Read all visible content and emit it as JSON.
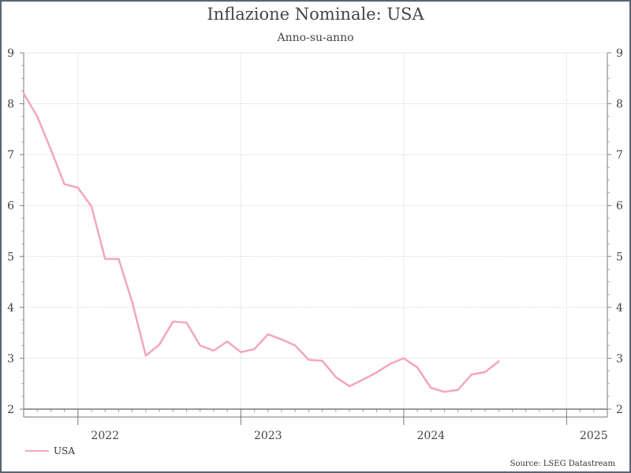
{
  "chart_data": {
    "type": "line",
    "title": "Inflazione Nominale: USA",
    "subtitle": "Anno-su-anno",
    "xlabel": "",
    "ylabel": "",
    "ylim": [
      2,
      9
    ],
    "yticks": [
      2,
      3,
      4,
      5,
      6,
      7,
      8,
      9
    ],
    "xlim": [
      "2022-01",
      "2025-08"
    ],
    "year_labels": [
      {
        "label": "2022",
        "month": "2022-07"
      },
      {
        "label": "2023",
        "month": "2023-07"
      },
      {
        "label": "2024",
        "month": "2024-07"
      },
      {
        "label": "2025",
        "month": "2025-07"
      }
    ],
    "year_boundaries": [
      "2022-05",
      "2023-05",
      "2024-05",
      "2025-05"
    ],
    "grid": true,
    "legend_position": "bottom-left",
    "series": [
      {
        "name": "USA",
        "color": "#f4a6bc",
        "points": [
          [
            "2022-01",
            8.2
          ],
          [
            "2022-02",
            7.75
          ],
          [
            "2022-03",
            7.1
          ],
          [
            "2022-04",
            6.42
          ],
          [
            "2022-05",
            6.35
          ],
          [
            "2022-06",
            5.98
          ],
          [
            "2022-07",
            4.95
          ],
          [
            "2022-08",
            4.95
          ],
          [
            "2022-09",
            4.1
          ],
          [
            "2022-10",
            3.05
          ],
          [
            "2022-11",
            3.27
          ],
          [
            "2022-12",
            3.72
          ],
          [
            "2023-01",
            3.7
          ],
          [
            "2023-02",
            3.25
          ],
          [
            "2023-03",
            3.15
          ],
          [
            "2023-04",
            3.33
          ],
          [
            "2023-05",
            3.12
          ],
          [
            "2023-06",
            3.18
          ],
          [
            "2023-07",
            3.47
          ],
          [
            "2023-08",
            3.37
          ],
          [
            "2023-09",
            3.25
          ],
          [
            "2023-10",
            2.97
          ],
          [
            "2023-11",
            2.95
          ],
          [
            "2023-12",
            2.63
          ],
          [
            "2024-01",
            2.45
          ],
          [
            "2024-02",
            2.58
          ],
          [
            "2024-03",
            2.72
          ],
          [
            "2024-04",
            2.89
          ],
          [
            "2024-05",
            3.0
          ],
          [
            "2024-06",
            2.82
          ],
          [
            "2024-07",
            2.42
          ],
          [
            "2024-08",
            2.34
          ],
          [
            "2024-09",
            2.38
          ],
          [
            "2024-10",
            2.68
          ],
          [
            "2024-11",
            2.73
          ],
          [
            "2024-12",
            2.94
          ]
        ]
      }
    ]
  },
  "legend": [
    {
      "label": "USA",
      "color": "#f4a6bc"
    }
  ],
  "source": "Source: LSEG Datastream"
}
